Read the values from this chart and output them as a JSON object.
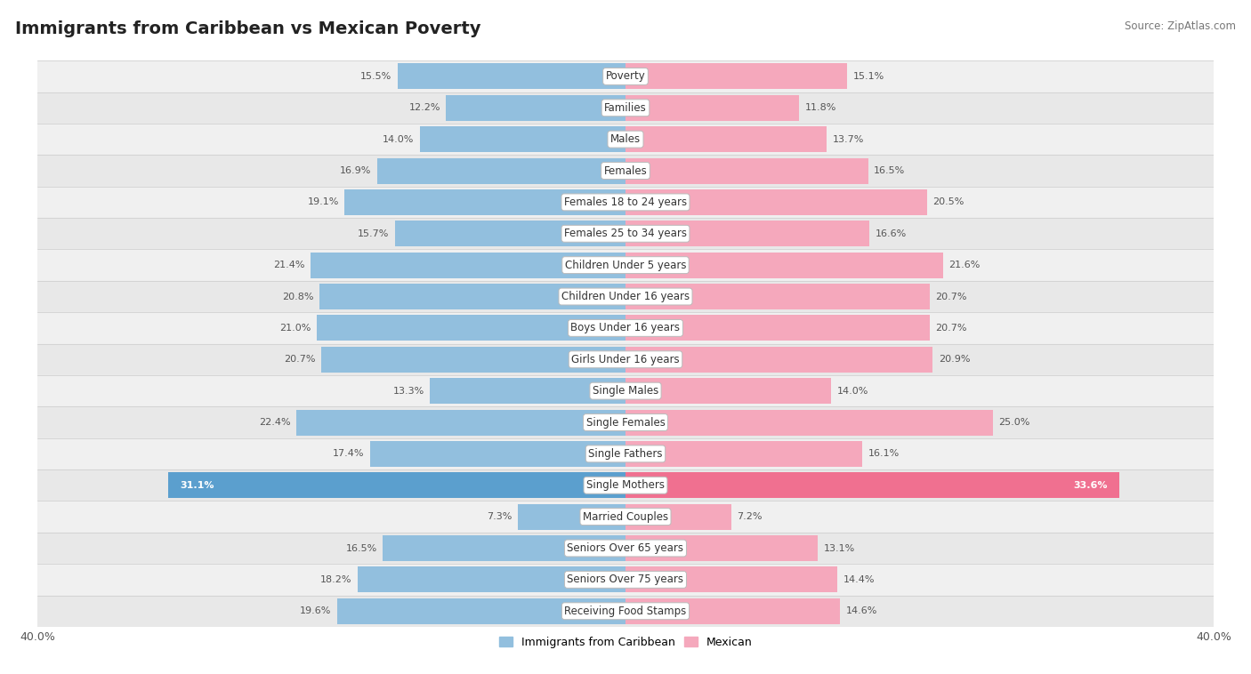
{
  "title": "Immigrants from Caribbean vs Mexican Poverty",
  "source": "Source: ZipAtlas.com",
  "categories": [
    "Poverty",
    "Families",
    "Males",
    "Females",
    "Females 18 to 24 years",
    "Females 25 to 34 years",
    "Children Under 5 years",
    "Children Under 16 years",
    "Boys Under 16 years",
    "Girls Under 16 years",
    "Single Males",
    "Single Females",
    "Single Fathers",
    "Single Mothers",
    "Married Couples",
    "Seniors Over 65 years",
    "Seniors Over 75 years",
    "Receiving Food Stamps"
  ],
  "caribbean": [
    15.5,
    12.2,
    14.0,
    16.9,
    19.1,
    15.7,
    21.4,
    20.8,
    21.0,
    20.7,
    13.3,
    22.4,
    17.4,
    31.1,
    7.3,
    16.5,
    18.2,
    19.6
  ],
  "mexican": [
    15.1,
    11.8,
    13.7,
    16.5,
    20.5,
    16.6,
    21.6,
    20.7,
    20.7,
    20.9,
    14.0,
    25.0,
    16.1,
    33.6,
    7.2,
    13.1,
    14.4,
    14.6
  ],
  "caribbean_color": "#92bfde",
  "mexican_color": "#f5a8bc",
  "caribbean_highlight_color": "#5b9fce",
  "mexican_highlight_color": "#f07090",
  "row_color_odd": "#f0f0f0",
  "row_color_even": "#e8e8e8",
  "axis_max": 40.0,
  "label_fontsize": 8.5,
  "title_fontsize": 14,
  "value_fontsize": 8.0,
  "legend_label_caribbean": "Immigrants from Caribbean",
  "legend_label_mexican": "Mexican"
}
